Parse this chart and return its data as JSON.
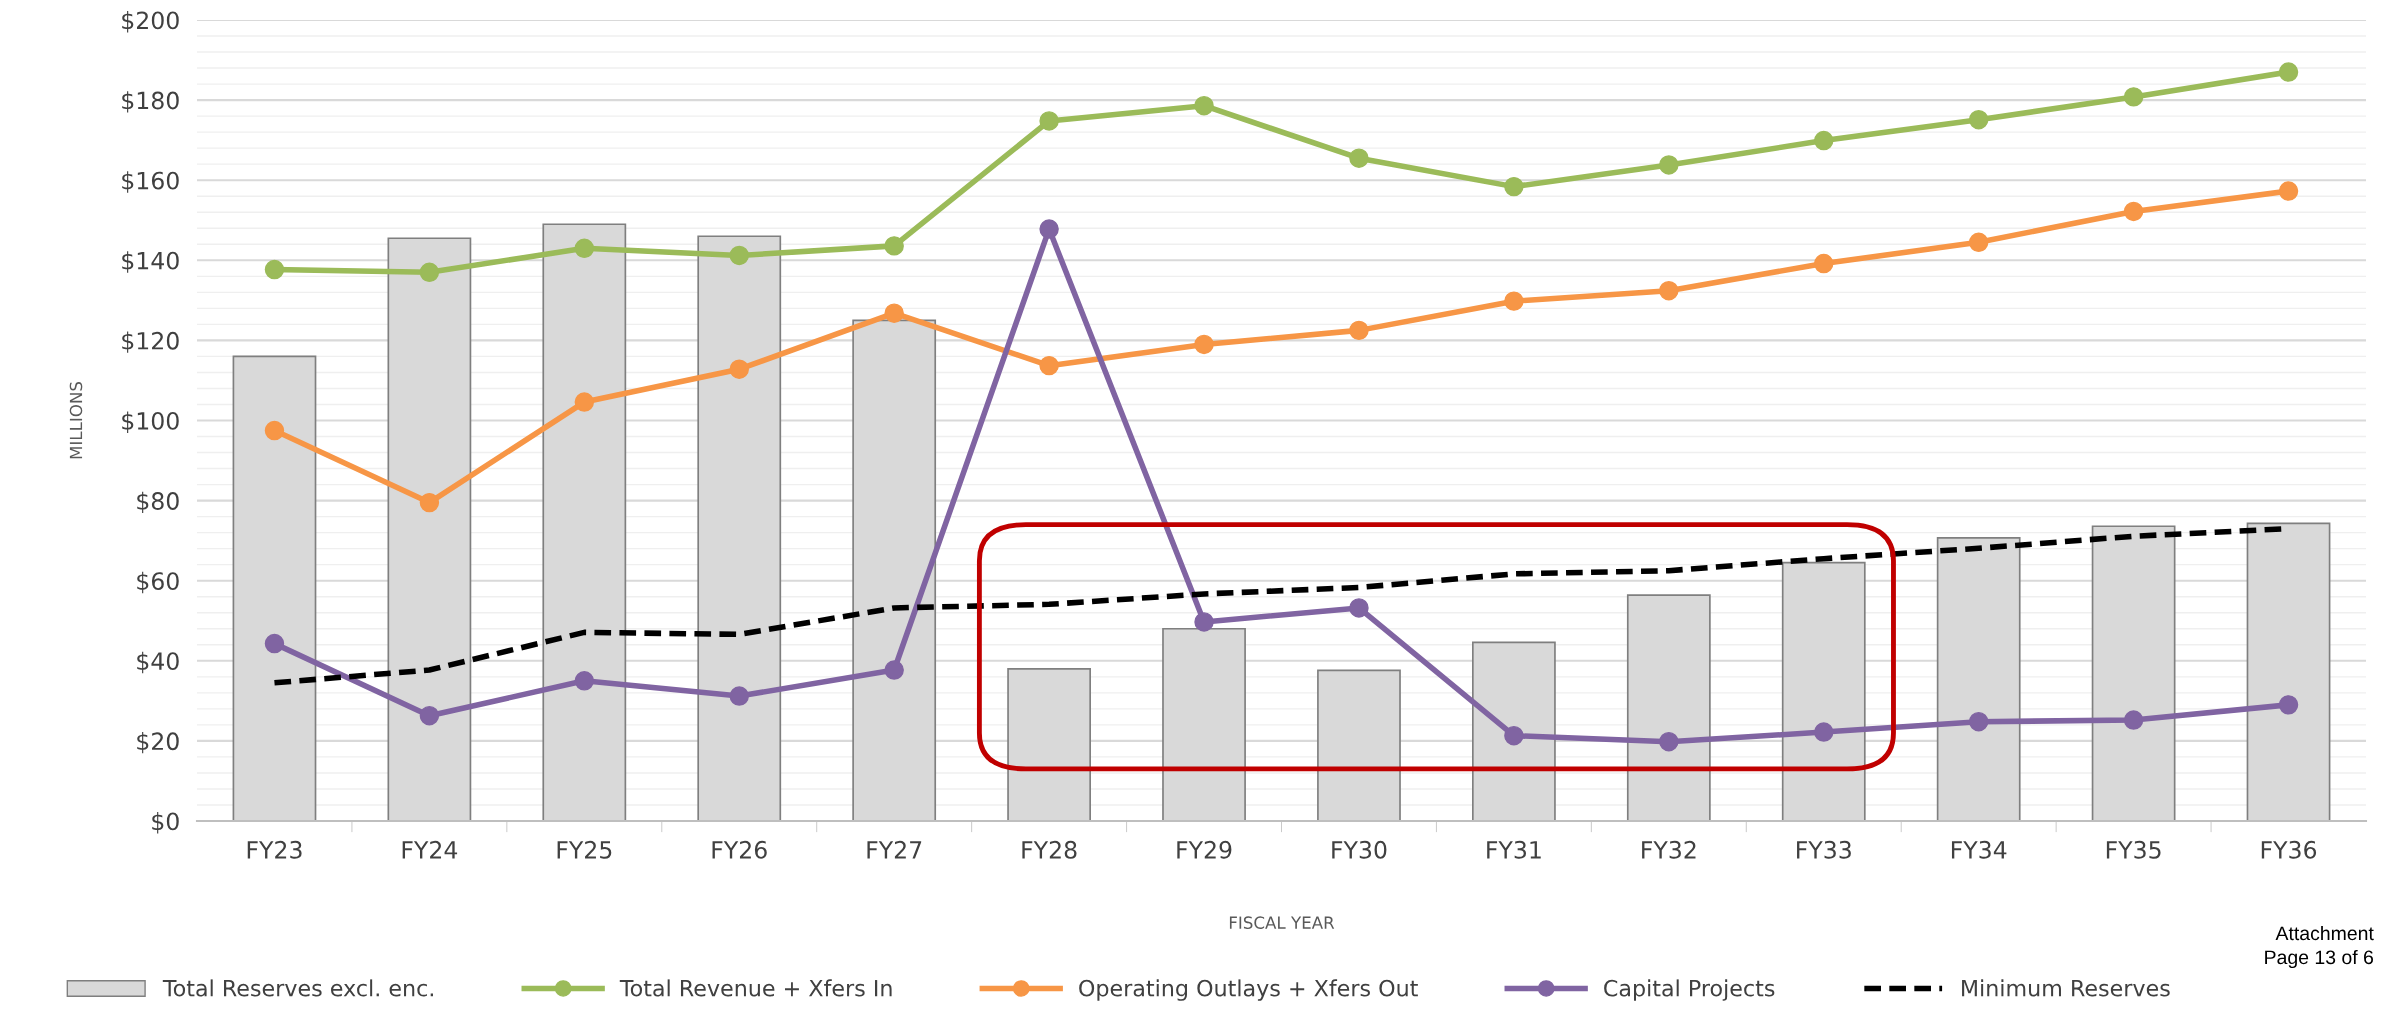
{
  "chart_data": {
    "type": "bar",
    "xlabel": "FISCAL YEAR",
    "ylabel": "MILLIONS",
    "categories": [
      "FY23",
      "FY24",
      "FY25",
      "FY26",
      "FY27",
      "FY28",
      "FY29",
      "FY30",
      "FY31",
      "FY32",
      "FY33",
      "FY34",
      "FY35",
      "FY36"
    ],
    "series": [
      {
        "name": "Total Reserves excl. enc.",
        "color": "#d9d9d9",
        "values": [
          116,
          145.5,
          149,
          146,
          125,
          38,
          48,
          37.6,
          44.6,
          56.4,
          64.5,
          70.7,
          73.6,
          74.3
        ]
      },
      {
        "name": "Total Revenue + Xfers In",
        "type": "line",
        "color": "#9bbb59",
        "marker": "circle",
        "line_style": "solid",
        "values": [
          137.7,
          137,
          143,
          141.2,
          143.6,
          174.8,
          178.6,
          165.5,
          158.4,
          163.8,
          169.9,
          175.1,
          180.8,
          187
        ]
      },
      {
        "name": "Operating Outlays + Xfers Out",
        "type": "line",
        "color": "#f79646",
        "marker": "circle",
        "line_style": "solid",
        "values": [
          97.5,
          79.5,
          104.6,
          112.8,
          126.8,
          113.7,
          119,
          122.5,
          129.8,
          132.4,
          139.2,
          144.5,
          152.2,
          157.3
        ]
      },
      {
        "name": "Capital Projects",
        "type": "line",
        "color": "#8064a2",
        "marker": "circle",
        "line_style": "solid",
        "values": [
          44.3,
          26.3,
          35,
          31.2,
          37.7,
          147.8,
          49.7,
          53.2,
          21.3,
          19.8,
          22.2,
          24.8,
          25.2,
          29
        ]
      },
      {
        "name": "Minimum Reserves",
        "type": "line",
        "color": "#000000",
        "marker": "none",
        "line_style": "dashed",
        "values": [
          34.5,
          37.7,
          47.1,
          46.6,
          53.2,
          54.1,
          56.7,
          58.3,
          61.7,
          62.5,
          65.5,
          68.1,
          71.1,
          73
        ]
      }
    ],
    "ylim": [
      0,
      200
    ],
    "yticks": [
      {
        "value": 0,
        "label": "$0"
      },
      {
        "value": 20,
        "label": "$20"
      },
      {
        "value": 40,
        "label": "$40"
      },
      {
        "value": 60,
        "label": "$60"
      },
      {
        "value": 80,
        "label": "$80"
      },
      {
        "value": 100,
        "label": "$100"
      },
      {
        "value": 120,
        "label": "$120"
      },
      {
        "value": 140,
        "label": "$140"
      },
      {
        "value": 160,
        "label": "$160"
      },
      {
        "value": 180,
        "label": "$180"
      },
      {
        "value": 200,
        "label": "$200"
      }
    ],
    "grid": "y",
    "legend": "bottom",
    "annotations": [
      "Attachment",
      "Page 13 of 6"
    ]
  }
}
